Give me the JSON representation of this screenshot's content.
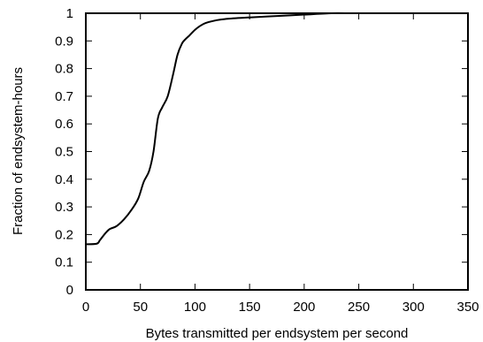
{
  "chart_data": {
    "type": "line",
    "title": "",
    "xlabel": "Bytes transmitted per endsystem per second",
    "ylabel": "Fraction of endsystem-hours",
    "xlim": [
      0,
      350
    ],
    "ylim": [
      0,
      1
    ],
    "xticks": [
      0,
      50,
      100,
      150,
      200,
      250,
      300,
      350
    ],
    "yticks": [
      0,
      0.1,
      0.2,
      0.3,
      0.4,
      0.5,
      0.6,
      0.7,
      0.8,
      0.9,
      1
    ],
    "xtick_labels": [
      "0",
      "50",
      "100",
      "150",
      "200",
      "250",
      "300",
      "350"
    ],
    "ytick_labels": [
      "0",
      "0.1",
      "0.2",
      "0.3",
      "0.4",
      "0.5",
      "0.6",
      "0.7",
      "0.8",
      "0.9",
      "1"
    ],
    "grid": false,
    "legend": "none",
    "series": [
      {
        "x": [
          0,
          10,
          13,
          18,
          22,
          28,
          35,
          42,
          48,
          53,
          58,
          62,
          66,
          70,
          75,
          80,
          84,
          88,
          91,
          95,
          100,
          105,
          110,
          120,
          130,
          150,
          175,
          200,
          225,
          240
        ],
        "y": [
          0.165,
          0.167,
          0.18,
          0.205,
          0.22,
          0.23,
          0.255,
          0.29,
          0.33,
          0.39,
          0.43,
          0.5,
          0.62,
          0.66,
          0.7,
          0.78,
          0.85,
          0.89,
          0.905,
          0.92,
          0.94,
          0.955,
          0.965,
          0.975,
          0.98,
          0.985,
          0.99,
          0.995,
          1.0,
          1.0
        ],
        "color": "#000000"
      }
    ]
  }
}
